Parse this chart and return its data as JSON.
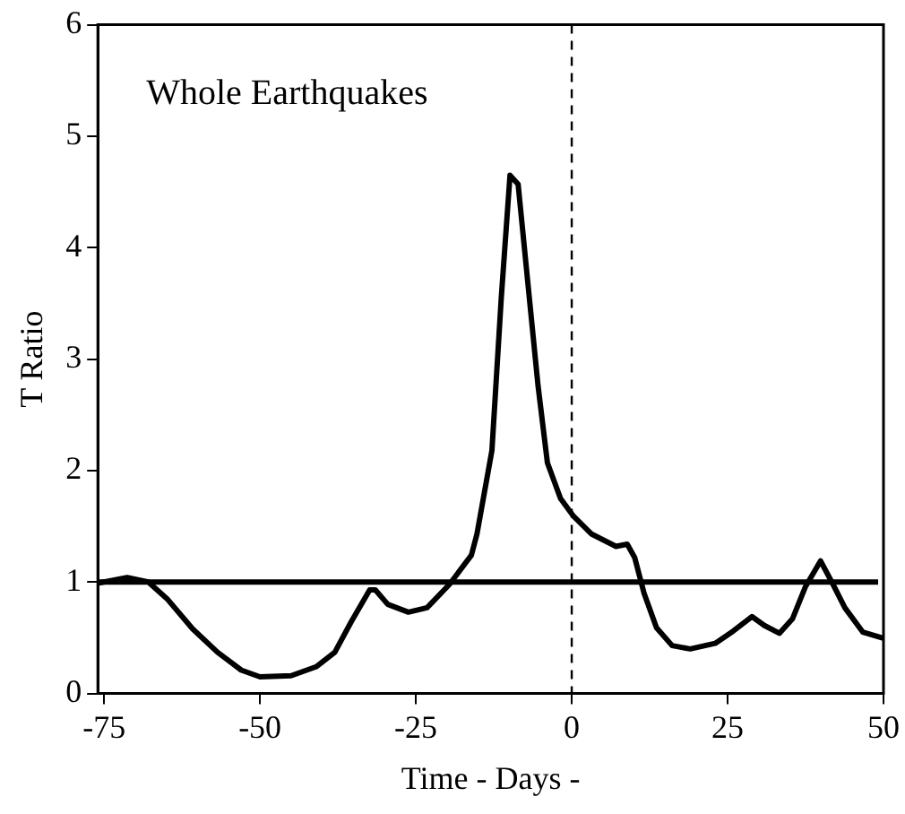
{
  "chart_data": {
    "type": "line",
    "xlabel": "Time - Days -",
    "ylabel": "T Ratio",
    "annotations": [
      "Whole Earthquakes"
    ],
    "xlim": [
      -76,
      50
    ],
    "xticks": [
      -75,
      -50,
      -25,
      0,
      25,
      50
    ],
    "ylim": [
      0,
      6
    ],
    "yticks": [
      0,
      1,
      2,
      3,
      4,
      5,
      6
    ],
    "grid": false,
    "legend": false,
    "marker": "none",
    "line_style": "solid",
    "ref_lines": [
      {
        "axis": "y",
        "value": 1,
        "color": "#000000",
        "line_style": "solid"
      },
      {
        "axis": "x",
        "value": 0,
        "color": "#000000",
        "line_style": "dashed"
      }
    ],
    "series": [
      {
        "color": "#000000",
        "x": [
          -76,
          -71.3,
          -67.9,
          -64.9,
          -60.8,
          -56.8,
          -53,
          -50,
          -45,
          -41,
          -38,
          -35.4,
          -32.4,
          -31.5,
          -29.5,
          -26.2,
          -23.2,
          -19.6,
          -16.1,
          -15.2,
          -12.8,
          -11.3,
          -9.9,
          -8.6,
          -6.8,
          -5.4,
          -3.9,
          -1.8,
          0.3,
          3.2,
          7.1,
          8.9,
          10.1,
          11.6,
          13.6,
          16.1,
          19,
          23,
          25.9,
          28.9,
          30.9,
          33.3,
          35.4,
          37.5,
          39.9,
          41.9,
          43.8,
          46.7,
          49.7
        ],
        "values": [
          0.99,
          1.04,
          1.0,
          0.85,
          0.58,
          0.37,
          0.21,
          0.15,
          0.16,
          0.24,
          0.37,
          0.64,
          0.93,
          0.93,
          0.8,
          0.73,
          0.77,
          0.98,
          1.24,
          1.43,
          2.18,
          3.55,
          4.65,
          4.57,
          3.55,
          2.76,
          2.07,
          1.75,
          1.59,
          1.43,
          1.32,
          1.34,
          1.22,
          0.9,
          0.59,
          0.43,
          0.4,
          0.45,
          0.56,
          0.69,
          0.61,
          0.54,
          0.67,
          0.96,
          1.19,
          0.98,
          0.77,
          0.55,
          0.5
        ]
      }
    ]
  }
}
